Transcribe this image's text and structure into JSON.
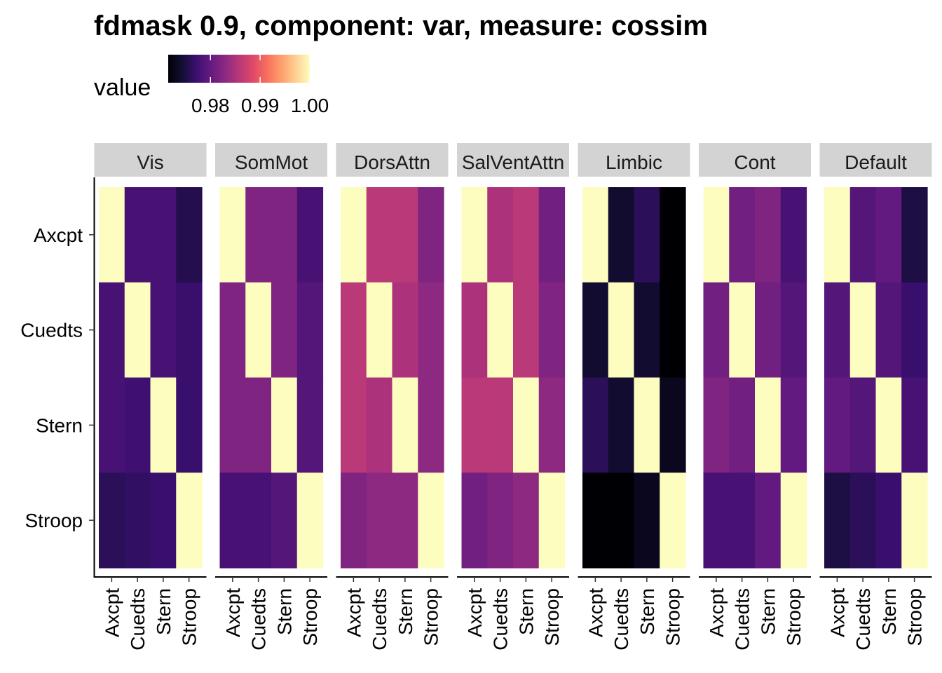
{
  "chart_data": {
    "type": "heatmap",
    "title": "fdmask 0.9, component: var, measure: cossim",
    "legend": {
      "title": "value",
      "position": "top-left",
      "breaks": [
        "0.98",
        "0.99",
        "1.00"
      ],
      "range": [
        0.9715,
        1.0
      ],
      "colormap": "magma"
    },
    "rows": [
      "Axcpt",
      "Cuedts",
      "Stern",
      "Stroop"
    ],
    "columns": [
      "Axcpt",
      "Cuedts",
      "Stern",
      "Stroop"
    ],
    "panels": [
      {
        "name": "Vis",
        "values": [
          [
            1.0,
            0.978,
            0.978,
            0.9755
          ],
          [
            0.978,
            1.0,
            0.978,
            0.977
          ],
          [
            0.978,
            0.9775,
            1.0,
            0.977
          ],
          [
            0.976,
            0.9765,
            0.977,
            1.0
          ]
        ]
      },
      {
        "name": "SomMot",
        "values": [
          [
            1.0,
            0.982,
            0.982,
            0.978
          ],
          [
            0.982,
            1.0,
            0.982,
            0.979
          ],
          [
            0.982,
            0.982,
            1.0,
            0.979
          ],
          [
            0.978,
            0.978,
            0.979,
            1.0
          ]
        ]
      },
      {
        "name": "DorsAttn",
        "values": [
          [
            1.0,
            0.986,
            0.986,
            0.982
          ],
          [
            0.986,
            1.0,
            0.985,
            0.983
          ],
          [
            0.986,
            0.985,
            1.0,
            0.983
          ],
          [
            0.982,
            0.983,
            0.983,
            1.0
          ]
        ]
      },
      {
        "name": "SalVentAttn",
        "values": [
          [
            1.0,
            0.985,
            0.986,
            0.981
          ],
          [
            0.985,
            1.0,
            0.986,
            0.982
          ],
          [
            0.986,
            0.986,
            1.0,
            0.983
          ],
          [
            0.981,
            0.982,
            0.983,
            1.0
          ]
        ]
      },
      {
        "name": "Limbic",
        "values": [
          [
            1.0,
            0.974,
            0.976,
            0.9715
          ],
          [
            0.974,
            1.0,
            0.974,
            0.9715
          ],
          [
            0.976,
            0.974,
            1.0,
            0.973
          ],
          [
            0.9715,
            0.9715,
            0.973,
            1.0
          ]
        ]
      },
      {
        "name": "Cont",
        "values": [
          [
            1.0,
            0.981,
            0.982,
            0.978
          ],
          [
            0.981,
            1.0,
            0.981,
            0.979
          ],
          [
            0.982,
            0.981,
            1.0,
            0.98
          ],
          [
            0.978,
            0.978,
            0.98,
            1.0
          ]
        ]
      },
      {
        "name": "Default",
        "values": [
          [
            1.0,
            0.979,
            0.98,
            0.975
          ],
          [
            0.979,
            1.0,
            0.979,
            0.977
          ],
          [
            0.98,
            0.979,
            1.0,
            0.978
          ],
          [
            0.975,
            0.976,
            0.977,
            1.0
          ]
        ]
      }
    ]
  }
}
